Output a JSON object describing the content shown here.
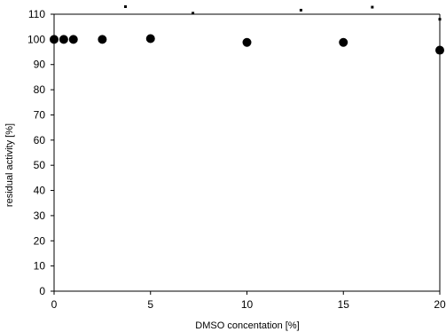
{
  "chart_data": {
    "type": "scatter",
    "xlabel": "DMSO concentation [%]",
    "ylabel": "residual activity [%]",
    "xlim": [
      0,
      20
    ],
    "ylim": [
      0,
      110
    ],
    "x_ticks": [
      "0",
      "5",
      "10",
      "15",
      "20"
    ],
    "y_ticks": [
      "0",
      "10",
      "20",
      "30",
      "40",
      "50",
      "60",
      "70",
      "80",
      "90",
      "100",
      "110"
    ],
    "grid": false,
    "legend": "none",
    "series": [
      {
        "x": [
          0,
          0.5,
          1,
          2.5,
          5,
          10,
          15,
          20
        ],
        "y": [
          100,
          100,
          100,
          100,
          100.3,
          98.8,
          98.8,
          95.7
        ]
      }
    ],
    "error_caps": {
      "x": [
        3.7,
        7.2,
        12.8,
        16.5,
        20
      ],
      "y": [
        113,
        110.4,
        111.6,
        112.8,
        108
      ]
    },
    "marker_color": "#000000",
    "axis_color": "#000000"
  }
}
